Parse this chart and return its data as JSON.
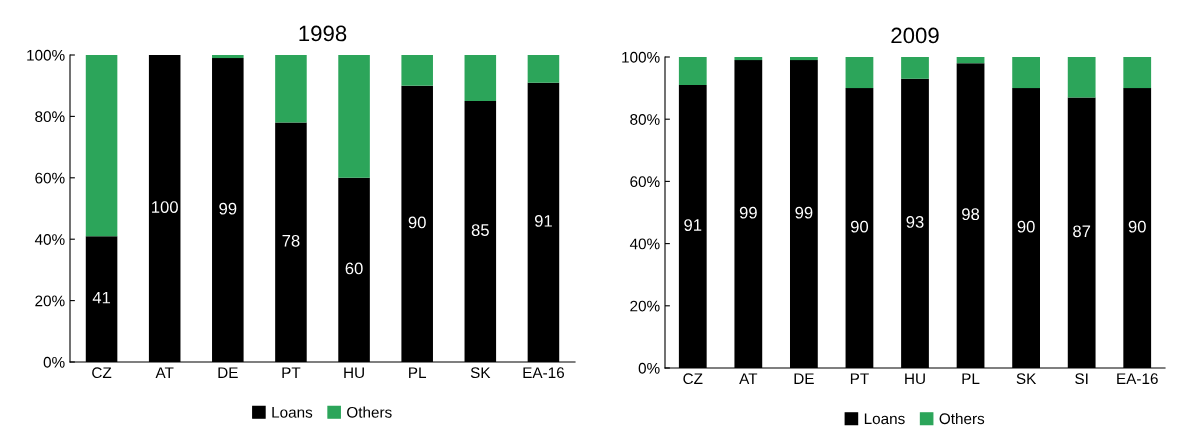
{
  "chart_data": [
    {
      "type": "bar",
      "title": "1998",
      "stacked": true,
      "legend": "bottom",
      "grid": false,
      "categories": [
        "CZ",
        "AT",
        "DE",
        "PT",
        "HU",
        "PL",
        "SK",
        "EA-16"
      ],
      "series": [
        {
          "name": "Loans",
          "color": "#000000",
          "values": [
            41,
            100,
            99,
            78,
            60,
            90,
            85,
            91
          ],
          "value_labels": [
            "41",
            "100",
            "99",
            "78",
            "60",
            "90",
            "85",
            "91"
          ]
        },
        {
          "name": "Others",
          "color": "#2ca55a",
          "values": [
            59,
            0,
            1,
            22,
            40,
            10,
            15,
            9
          ]
        }
      ],
      "ylim": [
        0,
        100
      ],
      "yticks": [
        {
          "value": 0,
          "label": "0%"
        },
        {
          "value": 20,
          "label": "20%"
        },
        {
          "value": 40,
          "label": "40%"
        },
        {
          "value": 60,
          "label": "60%"
        },
        {
          "value": 80,
          "label": "80%"
        },
        {
          "value": 100,
          "label": "100%"
        }
      ]
    },
    {
      "type": "bar",
      "title": "2009",
      "stacked": true,
      "legend": "bottom",
      "grid": false,
      "categories": [
        "CZ",
        "AT",
        "DE",
        "PT",
        "HU",
        "PL",
        "SK",
        "SI",
        "EA-16"
      ],
      "series": [
        {
          "name": "Loans",
          "color": "#000000",
          "values": [
            91,
            99,
            99,
            90,
            93,
            98,
            90,
            87,
            90
          ],
          "value_labels": [
            "91",
            "99",
            "99",
            "90",
            "93",
            "98",
            "90",
            "87",
            "90"
          ]
        },
        {
          "name": "Others",
          "color": "#2ca55a",
          "values": [
            9,
            1,
            1,
            10,
            7,
            2,
            10,
            13,
            10
          ]
        }
      ],
      "ylim": [
        0,
        100
      ],
      "yticks": [
        {
          "value": 0,
          "label": "0%"
        },
        {
          "value": 20,
          "label": "20%"
        },
        {
          "value": 40,
          "label": "40%"
        },
        {
          "value": 60,
          "label": "60%"
        },
        {
          "value": 80,
          "label": "80%"
        },
        {
          "value": 100,
          "label": "100%"
        }
      ]
    }
  ]
}
